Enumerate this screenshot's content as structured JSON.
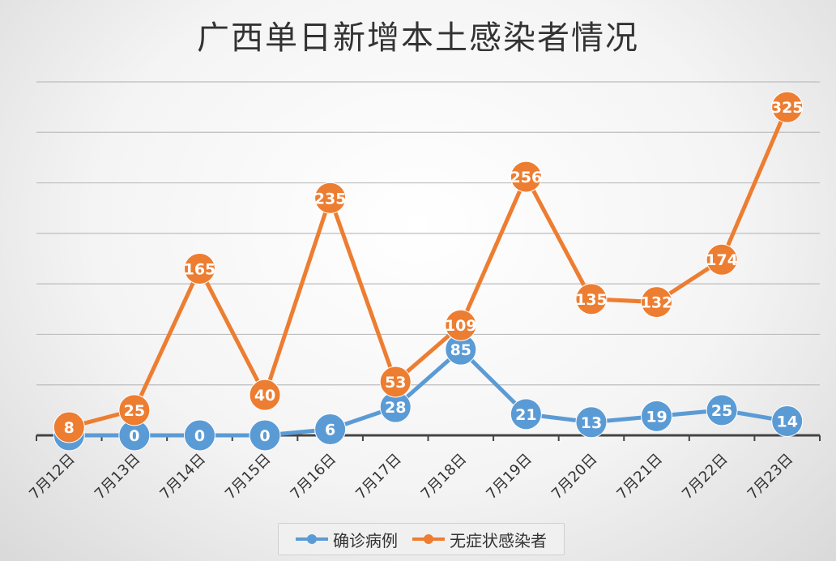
{
  "chart_data": {
    "type": "line",
    "title": "广西单日新增本土感染者情况",
    "categories": [
      "7月12日",
      "7月13日",
      "7月14日",
      "7月15日",
      "7月16日",
      "7月17日",
      "7月18日",
      "7月19日",
      "7月20日",
      "7月21日",
      "7月22日",
      "7月23日"
    ],
    "series": [
      {
        "name": "确诊病例",
        "color": "#5b9bd5",
        "values": [
          0,
          0,
          0,
          0,
          6,
          28,
          85,
          21,
          13,
          19,
          25,
          14
        ]
      },
      {
        "name": "无症状感染者",
        "color": "#ed7d31",
        "values": [
          8,
          25,
          165,
          40,
          235,
          53,
          109,
          256,
          135,
          132,
          174,
          325
        ]
      }
    ],
    "ylim": [
      0,
      350
    ],
    "grid": true,
    "legend": "bottom"
  }
}
